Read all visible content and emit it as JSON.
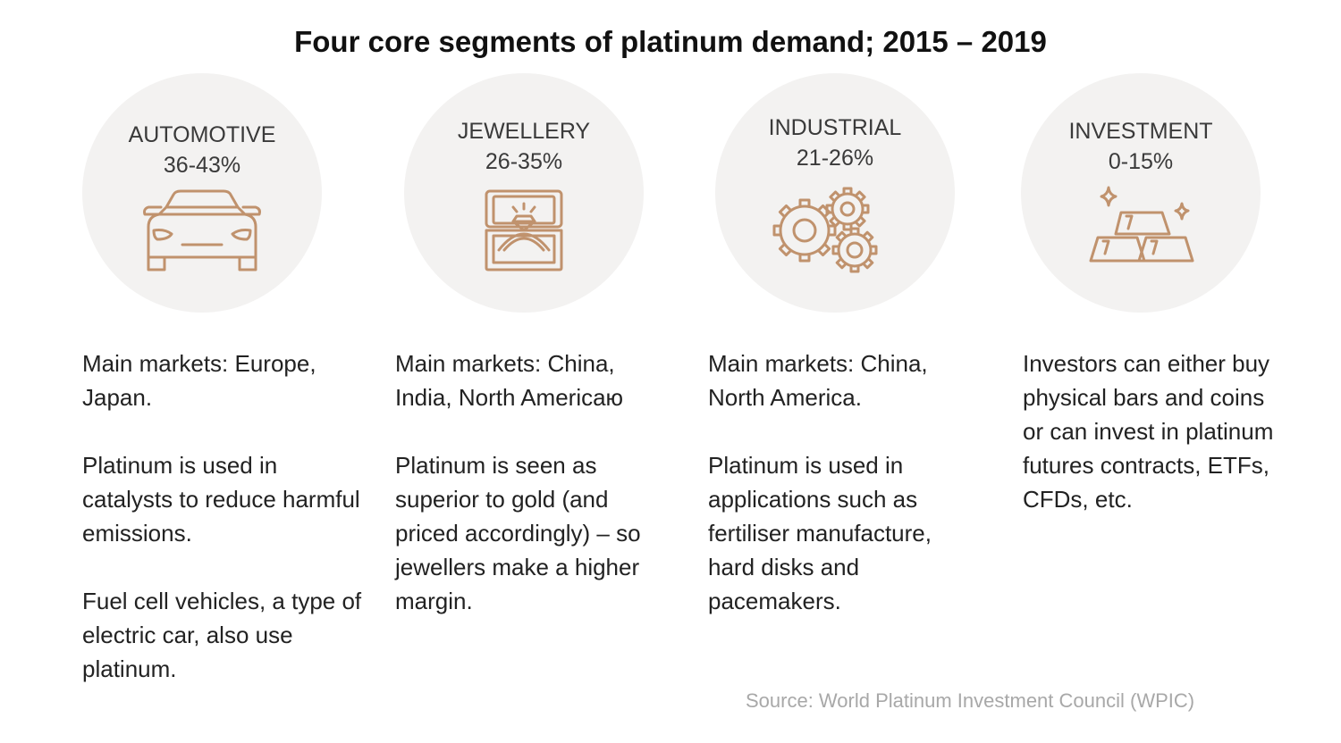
{
  "title": "Four core segments of platinum demand; 2015 – 2019",
  "accent_color": "#c0926d",
  "segments": [
    {
      "name": "AUTOMOTIVE",
      "range": "36-43%",
      "icon": "car-icon",
      "paragraphs": [
        "Main markets: Europe, Japan.",
        "Platinum is used in catalysts to reduce harmful emissions.",
        "Fuel cell vehicles, a type of electric car, also use platinum."
      ]
    },
    {
      "name": "JEWELLERY",
      "range": "26-35%",
      "icon": "ring-box-icon",
      "paragraphs": [
        "Main markets: China, India, North Americaю",
        "Platinum is seen as superior to gold (and priced accordingly) – so jewellers make a higher margin."
      ]
    },
    {
      "name": "INDUSTRIAL",
      "range": "21-26%",
      "icon": "gears-icon",
      "paragraphs": [
        "Main markets: China, North America.",
        "Platinum is used in applications such as fertiliser manufacture, hard disks and pacemakers."
      ]
    },
    {
      "name": "INVESTMENT",
      "range": "0-15%",
      "icon": "bars-icon",
      "paragraphs": [
        "Investors can either buy physical bars and coins or can invest in platinum futures contracts, ETFs, CFDs, etc."
      ]
    }
  ],
  "source": "Source: World Platinum Investment Council (WPIC)"
}
